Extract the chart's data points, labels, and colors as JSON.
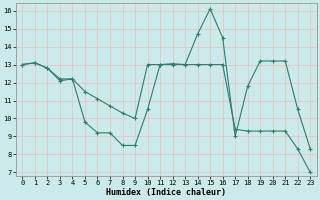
{
  "line1_x": [
    0,
    1,
    2,
    3,
    4,
    5,
    6,
    7,
    8,
    9,
    10,
    11,
    12,
    13,
    14,
    15,
    16,
    17,
    18,
    19,
    20,
    21,
    22,
    23
  ],
  "line1_y": [
    13.0,
    13.1,
    12.8,
    12.1,
    12.2,
    9.8,
    9.2,
    9.2,
    8.5,
    8.5,
    10.5,
    13.0,
    13.05,
    13.0,
    14.7,
    16.1,
    14.5,
    9.0,
    11.8,
    13.2,
    13.2,
    13.2,
    10.5,
    8.3
  ],
  "line2_x": [
    0,
    1,
    2,
    3,
    4,
    5,
    6,
    7,
    8,
    9,
    10,
    11,
    12,
    13,
    14,
    15,
    16,
    17,
    18,
    19,
    20,
    21,
    22,
    23
  ],
  "line2_y": [
    13.0,
    13.1,
    12.8,
    12.2,
    12.2,
    11.5,
    11.1,
    10.7,
    10.3,
    10.0,
    13.0,
    13.0,
    13.0,
    13.0,
    13.0,
    13.0,
    13.0,
    9.4,
    9.3,
    9.3,
    9.3,
    9.3,
    8.3,
    7.0
  ],
  "line_color": "#2e7d6e",
  "bg_color": "#cceaea",
  "grid_color": "#b0d8d8",
  "xlabel": "Humidex (Indice chaleur)",
  "ylim_min": 6.8,
  "ylim_max": 16.4,
  "xlim_min": -0.5,
  "xlim_max": 23.5,
  "yticks": [
    7,
    8,
    9,
    10,
    11,
    12,
    13,
    14,
    15,
    16
  ],
  "xticks": [
    0,
    1,
    2,
    3,
    4,
    5,
    6,
    7,
    8,
    9,
    10,
    11,
    12,
    13,
    14,
    15,
    16,
    17,
    18,
    19,
    20,
    21,
    22,
    23
  ],
  "tick_fontsize": 5,
  "xlabel_fontsize": 6,
  "line_width": 0.8,
  "marker_size": 3.0
}
